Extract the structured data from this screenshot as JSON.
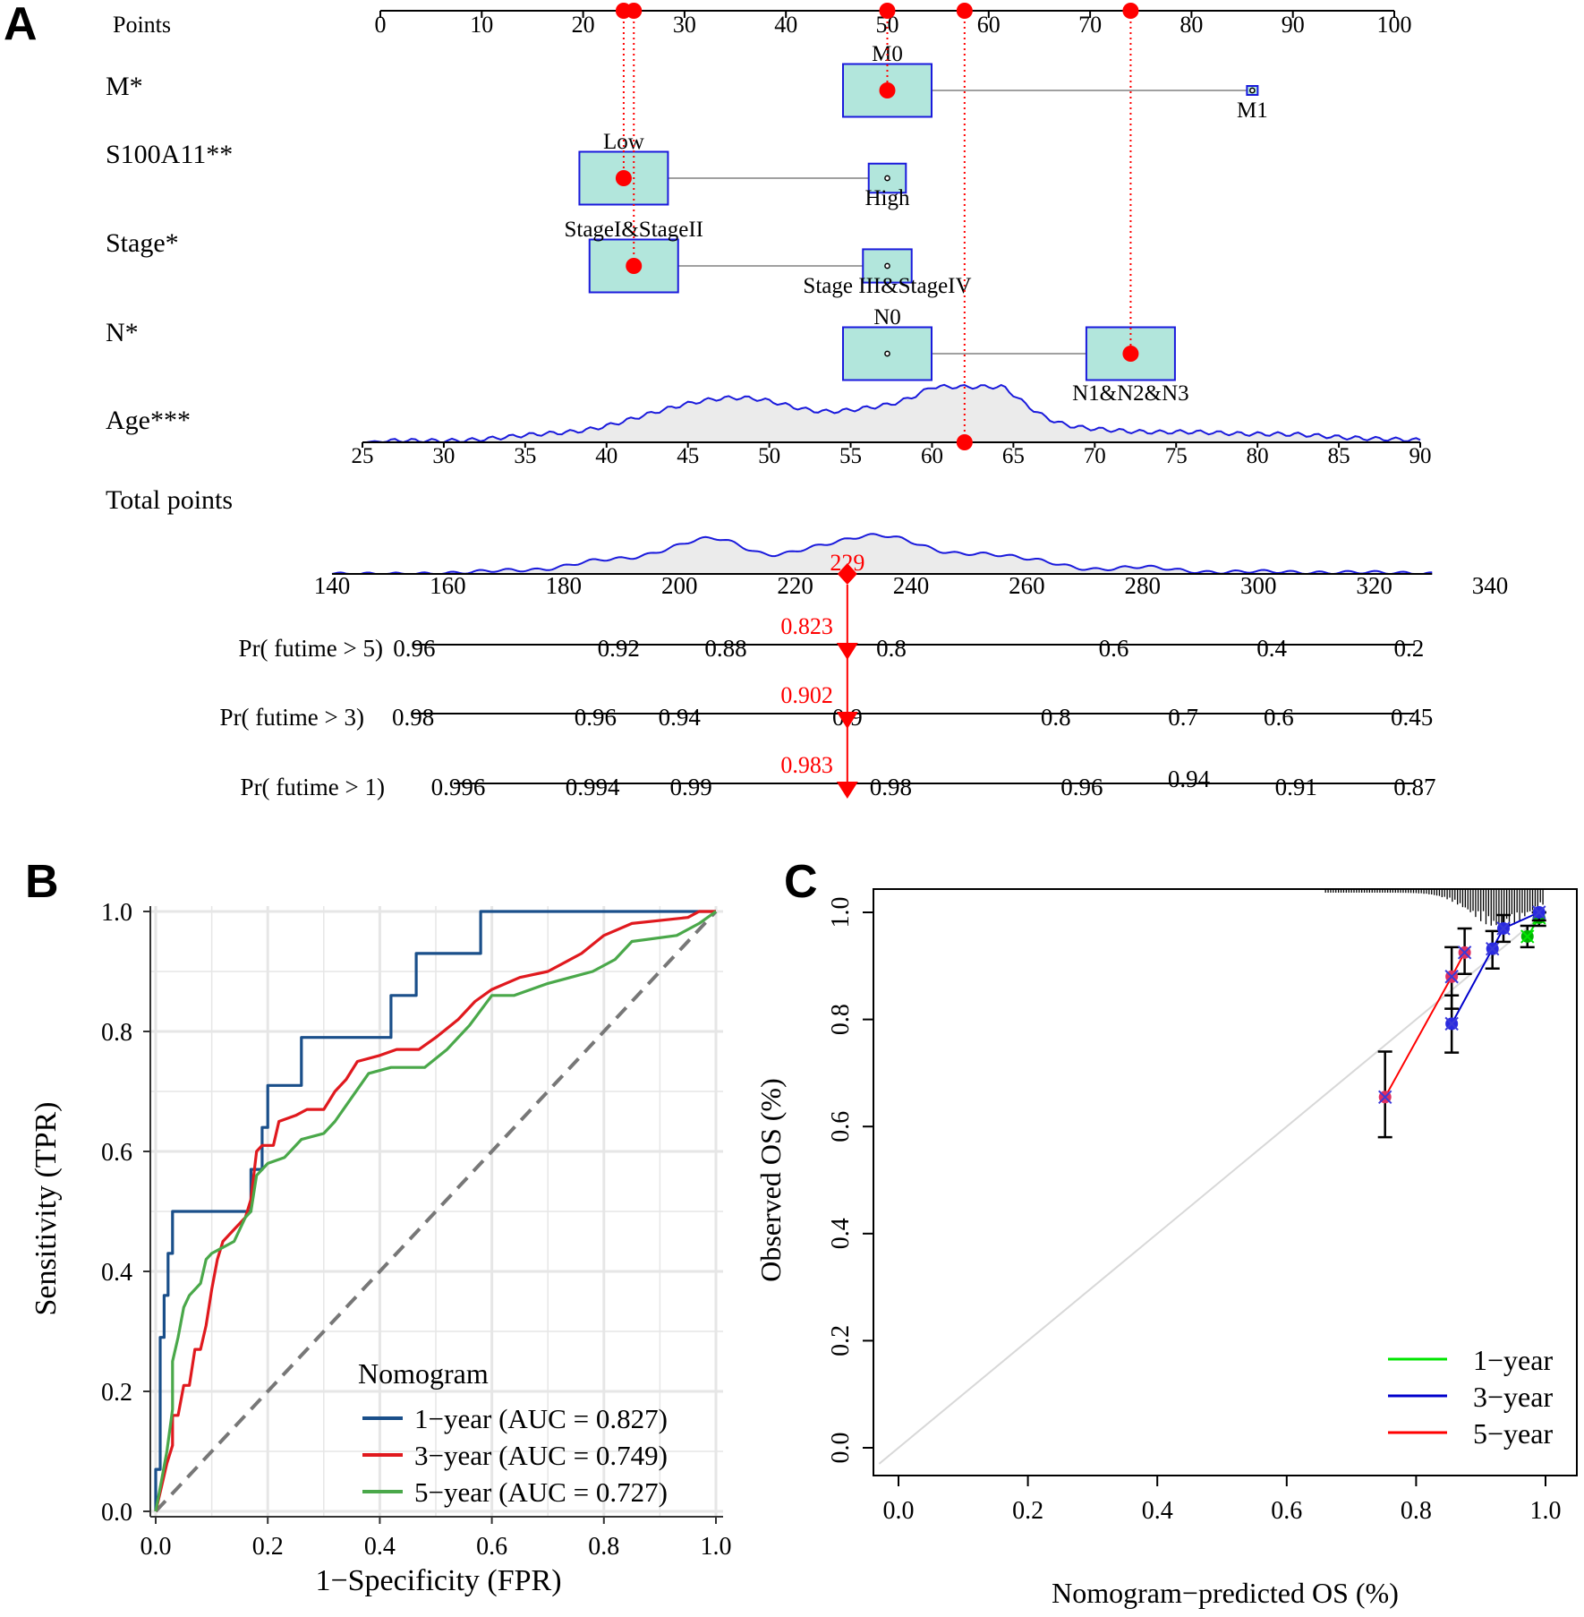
{
  "colors": {
    "box_fill": "#b2e6dc",
    "box_stroke": "#1a1adc",
    "marker": "#ff0000",
    "density_line": "#1a1adc",
    "density_fill": "#ebebeb",
    "gray_line": "#a0a0a0",
    "roc_1yr": "#1a4f8a",
    "roc_3yr": "#e0191e",
    "roc_5yr": "#4aa84a",
    "roc_panel_bg": "#ffffff",
    "roc_grid": "#e6e6e6",
    "cal_1yr": "#00e600",
    "cal_3yr": "#0000cc",
    "cal_5yr": "#ff0000"
  },
  "panel_labels": {
    "a": "A",
    "b": "B",
    "c": "C"
  },
  "chart_data": [
    {
      "type": "nomogram",
      "panel": "A",
      "points_axis": {
        "label": "Points",
        "range": [
          0,
          100
        ],
        "ticks": [
          "0",
          "10",
          "20",
          "30",
          "40",
          "50",
          "60",
          "70",
          "80",
          "90",
          "100"
        ]
      },
      "variables": [
        {
          "label": "M*",
          "levels": [
            {
              "name": "M0",
              "points": 50,
              "relative_size": 1.0
            },
            {
              "name": "M1",
              "points": 86,
              "relative_size": 0.08
            }
          ],
          "selected_points": 50
        },
        {
          "label": "S100A11**",
          "levels": [
            {
              "name": "Low",
              "points": 24,
              "relative_size": 1.0
            },
            {
              "name": "High",
              "points": 50,
              "relative_size": 0.42
            }
          ],
          "selected_points": 24
        },
        {
          "label": "Stage*",
          "levels": [
            {
              "name": "StageI&StageII",
              "points": 25,
              "relative_size": 1.0
            },
            {
              "name": "Stage III&StageIV",
              "points": 50,
              "relative_size": 0.55
            }
          ],
          "selected_points": 25
        },
        {
          "label": "N*",
          "levels": [
            {
              "name": "N0",
              "points": 50,
              "relative_size": 1.0
            },
            {
              "name": "N1&N2&N3",
              "points": 74,
              "relative_size": 1.0
            }
          ],
          "selected_points": 74
        }
      ],
      "age": {
        "label": "Age***",
        "range": [
          25,
          90
        ],
        "ticks": [
          "25",
          "30",
          "35",
          "40",
          "45",
          "50",
          "55",
          "60",
          "65",
          "70",
          "75",
          "80",
          "85",
          "90"
        ],
        "selected_value": 62,
        "selected_points": 57
      },
      "total_points": {
        "label": "Total points",
        "range": [
          140,
          340
        ],
        "ticks": [
          "140",
          "160",
          "180",
          "200",
          "220",
          "240",
          "260",
          "280",
          "300",
          "320",
          "340"
        ],
        "value": 229,
        "value_label": "229"
      },
      "probability_axes": [
        {
          "label": "Pr( futime > 5)",
          "ticks": [
            {
              "label": "0.96",
              "tp": 154.2
            },
            {
              "label": "0.92",
              "tp": 189.5
            },
            {
              "label": "0.88",
              "tp": 208.0
            },
            {
              "label": "0.8",
              "tp": 236.6
            },
            {
              "label": "0.6",
              "tp": 275.0
            },
            {
              "label": "0.4",
              "tp": 302.3
            },
            {
              "label": "0.2",
              "tp": 326.0
            }
          ],
          "line_range": [
            154,
            327
          ],
          "value_label": "0.823"
        },
        {
          "label": "Pr( futime > 3)",
          "ticks": [
            {
              "label": "0.98",
              "tp": 154.0
            },
            {
              "label": "0.96",
              "tp": 185.5
            },
            {
              "label": "0.94",
              "tp": 200.0
            },
            {
              "label": "0.9",
              "tp": 229.0
            },
            {
              "label": "0.8",
              "tp": 265.0
            },
            {
              "label": "0.7",
              "tp": 287.0
            },
            {
              "label": "0.6",
              "tp": 303.5
            },
            {
              "label": "0.45",
              "tp": 326.5
            }
          ],
          "line_range": [
            154,
            327
          ],
          "value_label": "0.902"
        },
        {
          "label": "Pr( futime > 1)",
          "ticks": [
            {
              "label": "0.996",
              "tp": 161.8
            },
            {
              "label": "0.994",
              "tp": 185.0
            },
            {
              "label": "0.99",
              "tp": 202.0
            },
            {
              "label": "0.98",
              "tp": 236.5
            },
            {
              "label": "0.96",
              "tp": 269.5
            },
            {
              "label": "0.94",
              "tp": 288.0
            },
            {
              "label": "0.91",
              "tp": 306.5
            },
            {
              "label": "0.87",
              "tp": 327.0
            }
          ],
          "line_range": [
            161,
            327
          ],
          "value_label": "0.983"
        }
      ]
    },
    {
      "type": "line",
      "panel": "B",
      "subtype": "roc",
      "xlabel": "1−Specificity (FPR)",
      "ylabel": "Sensitivity (TPR)",
      "xlim": [
        0,
        1
      ],
      "ylim": [
        0,
        1
      ],
      "xticks": [
        "0.0",
        "0.2",
        "0.4",
        "0.6",
        "0.8",
        "1.0"
      ],
      "yticks": [
        "0.0",
        "0.2",
        "0.4",
        "0.6",
        "0.8",
        "1.0"
      ],
      "legend_title": "Nomogram",
      "legend_position": "bottom-right",
      "reference_line": [
        [
          0,
          0
        ],
        [
          1,
          1
        ]
      ],
      "series": [
        {
          "name": "1−year (AUC = 0.827)",
          "color_key": "roc_1yr",
          "points": [
            [
              0,
              0
            ],
            [
              0,
              0.07
            ],
            [
              0.008,
              0.07
            ],
            [
              0.008,
              0.29
            ],
            [
              0.015,
              0.29
            ],
            [
              0.015,
              0.36
            ],
            [
              0.022,
              0.36
            ],
            [
              0.022,
              0.43
            ],
            [
              0.03,
              0.43
            ],
            [
              0.03,
              0.5
            ],
            [
              0.17,
              0.5
            ],
            [
              0.17,
              0.57
            ],
            [
              0.19,
              0.57
            ],
            [
              0.19,
              0.64
            ],
            [
              0.2,
              0.64
            ],
            [
              0.2,
              0.71
            ],
            [
              0.26,
              0.71
            ],
            [
              0.26,
              0.79
            ],
            [
              0.42,
              0.79
            ],
            [
              0.42,
              0.86
            ],
            [
              0.465,
              0.86
            ],
            [
              0.465,
              0.93
            ],
            [
              0.58,
              0.93
            ],
            [
              0.58,
              1.0
            ],
            [
              1,
              1
            ]
          ]
        },
        {
          "name": "3−year (AUC = 0.749)",
          "color_key": "roc_3yr",
          "points": [
            [
              0,
              0
            ],
            [
              0.01,
              0.04
            ],
            [
              0.02,
              0.08
            ],
            [
              0.03,
              0.11
            ],
            [
              0.03,
              0.16
            ],
            [
              0.04,
              0.16
            ],
            [
              0.05,
              0.21
            ],
            [
              0.06,
              0.21
            ],
            [
              0.07,
              0.27
            ],
            [
              0.08,
              0.27
            ],
            [
              0.09,
              0.31
            ],
            [
              0.1,
              0.37
            ],
            [
              0.11,
              0.42
            ],
            [
              0.12,
              0.45
            ],
            [
              0.14,
              0.47
            ],
            [
              0.16,
              0.49
            ],
            [
              0.17,
              0.52
            ],
            [
              0.18,
              0.6
            ],
            [
              0.19,
              0.61
            ],
            [
              0.21,
              0.61
            ],
            [
              0.22,
              0.65
            ],
            [
              0.25,
              0.66
            ],
            [
              0.27,
              0.67
            ],
            [
              0.3,
              0.67
            ],
            [
              0.32,
              0.7
            ],
            [
              0.34,
              0.72
            ],
            [
              0.36,
              0.75
            ],
            [
              0.4,
              0.76
            ],
            [
              0.43,
              0.77
            ],
            [
              0.47,
              0.77
            ],
            [
              0.5,
              0.79
            ],
            [
              0.54,
              0.82
            ],
            [
              0.57,
              0.85
            ],
            [
              0.6,
              0.87
            ],
            [
              0.65,
              0.89
            ],
            [
              0.7,
              0.9
            ],
            [
              0.76,
              0.93
            ],
            [
              0.8,
              0.96
            ],
            [
              0.85,
              0.98
            ],
            [
              0.95,
              0.99
            ],
            [
              0.97,
              1.0
            ],
            [
              1,
              1
            ]
          ]
        },
        {
          "name": "5−year (AUC = 0.727)",
          "color_key": "roc_5yr",
          "points": [
            [
              0,
              0
            ],
            [
              0.01,
              0.05
            ],
            [
              0.02,
              0.1
            ],
            [
              0.03,
              0.17
            ],
            [
              0.03,
              0.25
            ],
            [
              0.04,
              0.29
            ],
            [
              0.05,
              0.34
            ],
            [
              0.06,
              0.36
            ],
            [
              0.08,
              0.38
            ],
            [
              0.09,
              0.42
            ],
            [
              0.1,
              0.43
            ],
            [
              0.12,
              0.44
            ],
            [
              0.14,
              0.45
            ],
            [
              0.16,
              0.49
            ],
            [
              0.17,
              0.5
            ],
            [
              0.18,
              0.56
            ],
            [
              0.2,
              0.58
            ],
            [
              0.23,
              0.59
            ],
            [
              0.26,
              0.62
            ],
            [
              0.3,
              0.63
            ],
            [
              0.32,
              0.65
            ],
            [
              0.35,
              0.69
            ],
            [
              0.38,
              0.73
            ],
            [
              0.42,
              0.74
            ],
            [
              0.48,
              0.74
            ],
            [
              0.52,
              0.77
            ],
            [
              0.56,
              0.81
            ],
            [
              0.6,
              0.86
            ],
            [
              0.64,
              0.86
            ],
            [
              0.7,
              0.88
            ],
            [
              0.78,
              0.9
            ],
            [
              0.82,
              0.92
            ],
            [
              0.85,
              0.95
            ],
            [
              0.93,
              0.96
            ],
            [
              0.97,
              0.98
            ],
            [
              1,
              1
            ]
          ]
        }
      ]
    },
    {
      "type": "line",
      "panel": "C",
      "subtype": "calibration",
      "xlabel": "Nomogram−predicted OS (%)",
      "ylabel": "Observed OS (%)",
      "xlim": [
        0,
        1
      ],
      "ylim": [
        0,
        1
      ],
      "xticks": [
        "0.0",
        "0.2",
        "0.4",
        "0.6",
        "0.8",
        "1.0"
      ],
      "yticks": [
        "0.0",
        "0.2",
        "0.4",
        "0.6",
        "0.8",
        "1.0"
      ],
      "legend_position": "bottom-right",
      "ideal_line": [
        [
          0,
          0
        ],
        [
          1,
          1
        ]
      ],
      "series": [
        {
          "name": "1−year",
          "color_key": "cal_1yr",
          "points": [
            {
              "x": 0.972,
              "y": 0.955,
              "lo": 0.935,
              "hi": 0.975
            },
            {
              "x": 0.99,
              "y": 0.99,
              "lo": 0.975,
              "hi": 1.0
            }
          ]
        },
        {
          "name": "3−year",
          "color_key": "cal_3yr",
          "points": [
            {
              "x": 0.855,
              "y": 0.792,
              "lo": 0.738,
              "hi": 0.845
            },
            {
              "x": 0.918,
              "y": 0.932,
              "lo": 0.895,
              "hi": 0.965
            },
            {
              "x": 0.935,
              "y": 0.97,
              "lo": 0.945,
              "hi": 0.995
            },
            {
              "x": 0.99,
              "y": 1.0,
              "lo": 0.985,
              "hi": 1.0
            }
          ]
        },
        {
          "name": "5−year",
          "color_key": "cal_5yr",
          "points": [
            {
              "x": 0.752,
              "y": 0.655,
              "lo": 0.58,
              "hi": 0.74
            },
            {
              "x": 0.855,
              "y": 0.88,
              "lo": 0.82,
              "hi": 0.935
            },
            {
              "x": 0.875,
              "y": 0.925,
              "lo": 0.885,
              "hi": 0.97
            }
          ]
        }
      ]
    }
  ]
}
